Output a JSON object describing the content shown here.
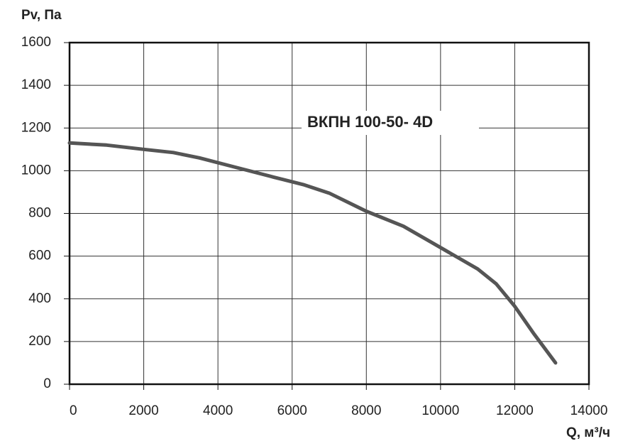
{
  "chart_data": {
    "type": "line",
    "title": "ВКПН 100-50- 4D",
    "y_label": "Pv, Па",
    "x_label": "Q, м³/ч",
    "series": [
      {
        "name": "ВКПН 100-50- 4D",
        "color": "#555555",
        "x": [
          0,
          1000,
          2000,
          2800,
          3500,
          4500,
          5500,
          6300,
          7000,
          8000,
          9000,
          9800,
          10500,
          11000,
          11500,
          12000,
          12500,
          13100
        ],
        "values": [
          1130,
          1120,
          1100,
          1085,
          1060,
          1015,
          970,
          935,
          895,
          810,
          740,
          660,
          590,
          540,
          470,
          365,
          240,
          100
        ]
      }
    ],
    "xlim": [
      0,
      14000
    ],
    "xticks": [
      0,
      2000,
      4000,
      6000,
      8000,
      10000,
      12000,
      14000
    ],
    "ylim": [
      0,
      1600
    ],
    "yticks": [
      0,
      200,
      400,
      600,
      800,
      1000,
      1200,
      1400,
      1600
    ],
    "grid": true
  }
}
